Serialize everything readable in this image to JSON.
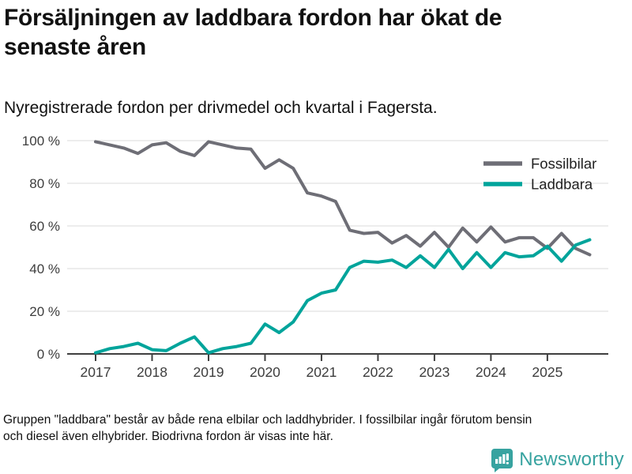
{
  "header": {
    "title_lines": [
      "Försäljningen av laddbara fordon har ökat de",
      "senaste åren"
    ],
    "subtitle": "Nyregistrerade fordon per drivmedel och kvartal i Fagersta."
  },
  "footnote": {
    "lines": [
      "Gruppen \"laddbara\" består av både rena elbilar och laddhybrider. I fossilbilar ingår förutom bensin",
      "och diesel även elhybrider. Biodrivna fordon är visas inte här."
    ]
  },
  "branding": {
    "name": "Newsworthy",
    "logo_icon": "speech-bubble-bar-chart-icon",
    "color": "#37a3a0"
  },
  "colors": {
    "fossil_line": "#6e6e76",
    "laddbara_line": "#00a49b",
    "gridline": "#e2e2e2",
    "axis": "#3f3f3f",
    "tick_label": "#3d3d3d"
  },
  "chart_data": {
    "type": "line",
    "title": "Försäljningen av laddbara fordon har ökat de senaste åren",
    "subtitle": "Nyregistrerade fordon per drivmedel och kvartal i Fagersta.",
    "x": [
      "2017 Q1",
      "2017 Q2",
      "2017 Q3",
      "2017 Q4",
      "2018 Q1",
      "2018 Q2",
      "2018 Q3",
      "2018 Q4",
      "2019 Q1",
      "2019 Q2",
      "2019 Q3",
      "2019 Q4",
      "2020 Q1",
      "2020 Q2",
      "2020 Q3",
      "2020 Q4",
      "2021 Q1",
      "2021 Q2",
      "2021 Q3",
      "2021 Q4",
      "2022 Q1",
      "2022 Q2",
      "2022 Q3",
      "2022 Q4",
      "2023 Q1",
      "2023 Q2",
      "2023 Q3",
      "2023 Q4",
      "2024 Q1",
      "2024 Q2",
      "2024 Q3",
      "2024 Q4",
      "2025 Q1",
      "2025 Q2",
      "2025 Q3",
      "2025 Q4"
    ],
    "series": [
      {
        "name": "Fossilbilar",
        "color": "#6e6e76",
        "values": [
          99.5,
          98,
          96.5,
          94,
          98,
          99,
          95,
          93,
          99.5,
          98,
          96.5,
          96,
          87,
          91,
          87,
          75.5,
          74,
          71.5,
          58,
          56.5,
          57,
          52,
          55.5,
          50.5,
          57,
          50,
          59,
          52.5,
          59.5,
          52.5,
          54.5,
          54.5,
          49.5,
          56.5,
          49.5,
          46.5
        ]
      },
      {
        "name": "Laddbara",
        "color": "#00a49b",
        "values": [
          0.5,
          2.5,
          3.5,
          5,
          2,
          1.5,
          5,
          8,
          0.5,
          2.5,
          3.5,
          5,
          14,
          10,
          15,
          25,
          28.5,
          30,
          40.5,
          43.5,
          43,
          44,
          40.5,
          46,
          40.5,
          49,
          40,
          47.5,
          40.5,
          47.5,
          45.5,
          46,
          50.5,
          43.5,
          51,
          53.5
        ]
      }
    ],
    "ylim": [
      0,
      100
    ],
    "y_ticks": [
      {
        "value": 0,
        "label": "0 %"
      },
      {
        "value": 20,
        "label": "20 %"
      },
      {
        "value": 40,
        "label": "40 %"
      },
      {
        "value": 60,
        "label": "60 %"
      },
      {
        "value": 80,
        "label": "80 %"
      },
      {
        "value": 100,
        "label": "100 %"
      }
    ],
    "x_tick_labels": [
      "2017",
      "2018",
      "2019",
      "2020",
      "2021",
      "2022",
      "2023",
      "2024",
      "2025"
    ],
    "grid": "horizontal",
    "legend_position": "top-right",
    "unit": "percent"
  }
}
